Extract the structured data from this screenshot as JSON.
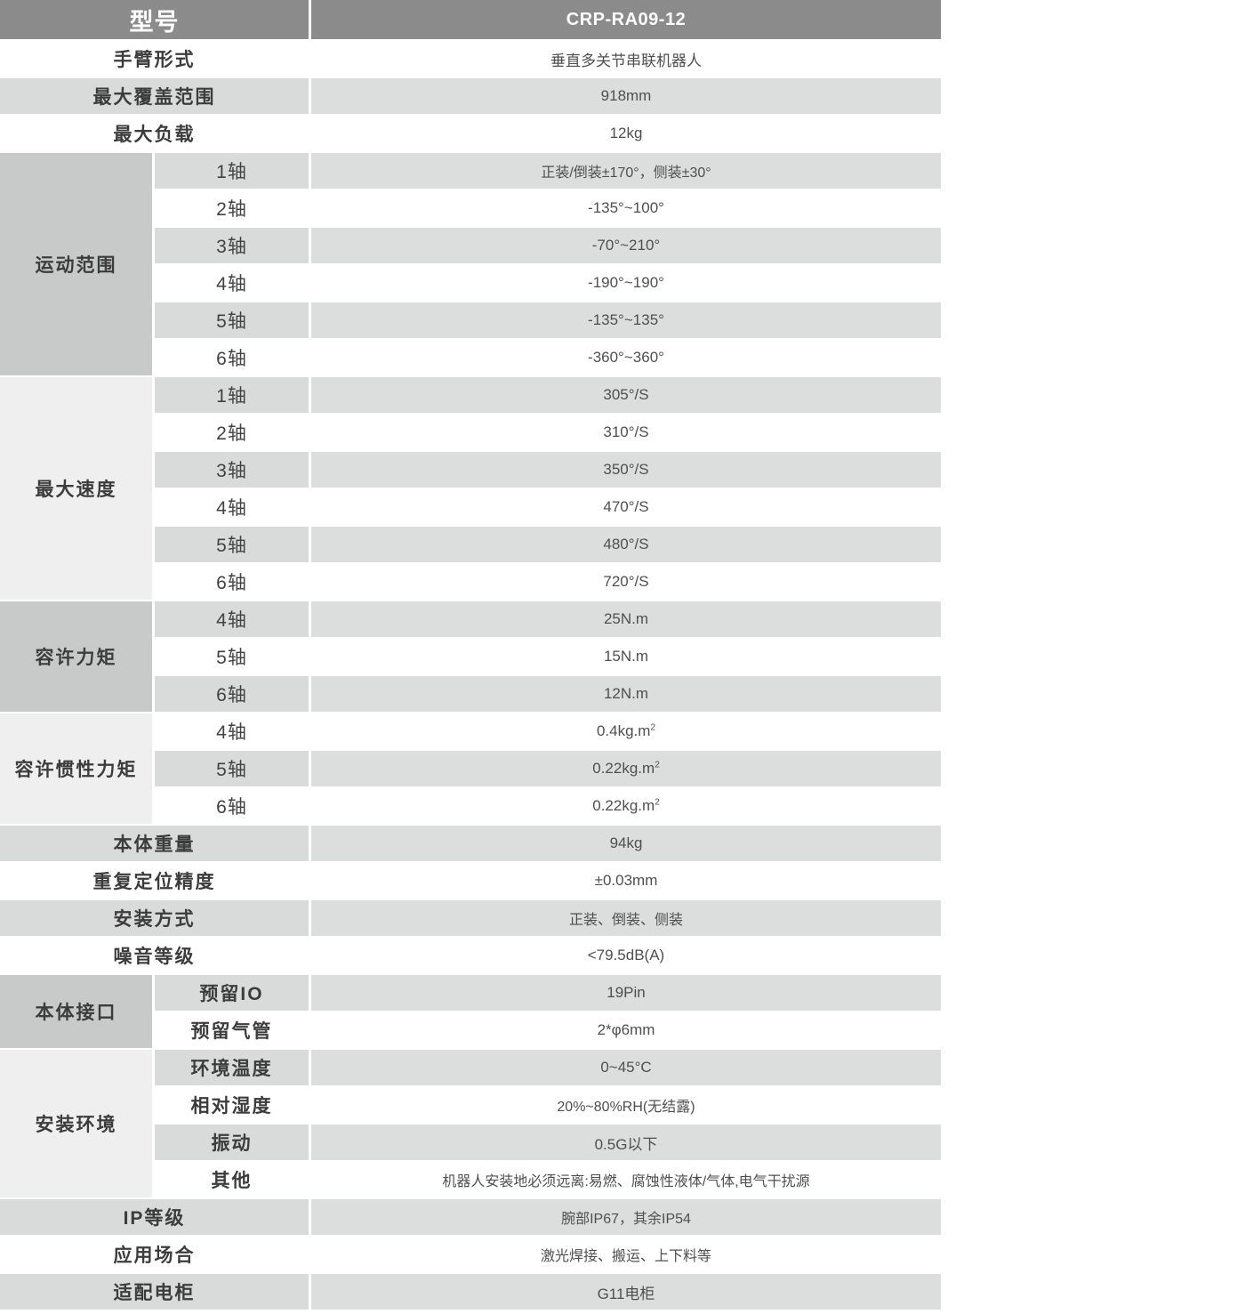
{
  "header": {
    "col_model": "型号",
    "col_value": "CRP-RA09-12"
  },
  "colors": {
    "header_bg": "#8a8b8a",
    "group_dark": "#c8c9c9",
    "group_light": "#efefef",
    "stripe_label": "#d9dada",
    "stripe_value": "#dcdddd",
    "header_text": "#ffffff",
    "body_text": "#4f4f4f"
  },
  "rows": [
    {
      "span": 2,
      "label": "手臂形式",
      "value": "垂直多关节串联机器人"
    },
    {
      "span": 2,
      "label": "最大覆盖范围",
      "value": "918mm"
    },
    {
      "span": 2,
      "label": "最大负载",
      "value": "12kg"
    },
    {
      "group": {
        "label": "运动范围",
        "rows": 6,
        "tone": "dark"
      },
      "label": "1轴",
      "value": "正装/倒装±170°，侧装±30°",
      "small": true
    },
    {
      "label": "2轴",
      "value": "-135°~100°"
    },
    {
      "label": "3轴",
      "value": "-70°~210°"
    },
    {
      "label": "4轴",
      "value": "-190°~190°"
    },
    {
      "label": "5轴",
      "value": "-135°~135°"
    },
    {
      "label": "6轴",
      "value": "-360°~360°"
    },
    {
      "group": {
        "label": "最大速度",
        "rows": 6,
        "tone": "light"
      },
      "label": "1轴",
      "value": "305°/S"
    },
    {
      "label": "2轴",
      "value": "310°/S"
    },
    {
      "label": "3轴",
      "value": "350°/S"
    },
    {
      "label": "4轴",
      "value": "470°/S"
    },
    {
      "label": "5轴",
      "value": "480°/S"
    },
    {
      "label": "6轴",
      "value": "720°/S"
    },
    {
      "group": {
        "label": "容许力矩",
        "rows": 3,
        "tone": "dark"
      },
      "label": "4轴",
      "value": "25N.m"
    },
    {
      "label": "5轴",
      "value": "15N.m"
    },
    {
      "label": "6轴",
      "value": "12N.m"
    },
    {
      "group": {
        "label": "容许惯性力矩",
        "rows": 3,
        "tone": "light"
      },
      "label": "4轴",
      "value": "0.4kg.m²"
    },
    {
      "label": "5轴",
      "value": "0.22kg.m²"
    },
    {
      "label": "6轴",
      "value": "0.22kg.m²"
    },
    {
      "span": 2,
      "label": "本体重量",
      "value": "94kg"
    },
    {
      "span": 2,
      "label": "重复定位精度",
      "value": "±0.03mm"
    },
    {
      "span": 2,
      "label": "安装方式",
      "value": "正装、倒装、侧装",
      "small": true
    },
    {
      "span": 2,
      "label": "噪音等级",
      "value": "<79.5dB(A)"
    },
    {
      "group": {
        "label": "本体接口",
        "rows": 2,
        "tone": "dark"
      },
      "label": "预留IO",
      "labelBold": true,
      "value": "19Pin"
    },
    {
      "label": "预留气管",
      "labelBold": true,
      "value": "2*φ6mm"
    },
    {
      "group": {
        "label": "安装环境",
        "rows": 4,
        "tone": "light"
      },
      "label": "环境温度",
      "labelBold": true,
      "value": "0~45°C"
    },
    {
      "label": "相对湿度",
      "labelBold": true,
      "value": "20%~80%RH(无结露)",
      "small": true
    },
    {
      "label": "振动",
      "labelBold": true,
      "value": "0.5G以下"
    },
    {
      "label": "其他",
      "labelBold": true,
      "value": "机器人安装地必须远离:易燃、腐蚀性液体/气体,电气干扰源",
      "small": true
    },
    {
      "span": 2,
      "label": "IP等级",
      "value": "腕部IP67，其余IP54",
      "small": true
    },
    {
      "span": 2,
      "label": "应用场合",
      "value": "激光焊接、搬运、上下料等",
      "small": true
    },
    {
      "span": 2,
      "label": "适配电柜",
      "value": "G11电柜"
    }
  ]
}
